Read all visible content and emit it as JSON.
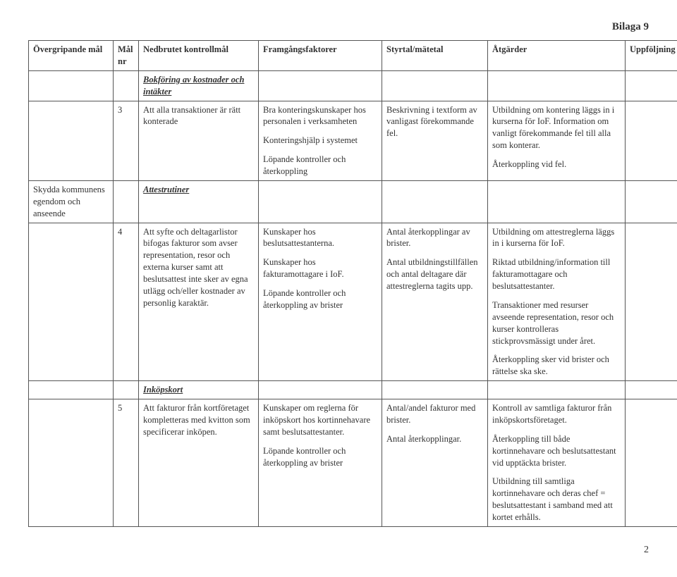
{
  "header_right": "Bilaga 9",
  "columns": {
    "c1": "Övergripande mål",
    "c2": "Mål nr",
    "c3": "Nedbrutet kontrollmål",
    "c4": "Framgångsfaktorer",
    "c5": "Styrtal/mätetal",
    "c6": "Åtgärder",
    "c7": "Uppföljning"
  },
  "section1_title": "Bokföring av kostnader och intäkter",
  "row3": {
    "nr": "3",
    "ned": "Att alla transaktioner är rätt konterade",
    "fram_p1": "Bra konteringskunskaper hos personalen i verksamheten",
    "fram_p2": "Konteringshjälp i systemet",
    "fram_p3": "Löpande kontroller och återkoppling",
    "styr": "Beskrivning i textform av vanligast förekommande fel.",
    "atg_p1": "Utbildning om kontering läggs in i kurserna för IoF. Information om vanligt förekommande fel till alla som konterar.",
    "atg_p2": "Återkoppling vid fel."
  },
  "section2_title": "Attestrutiner",
  "skydda": "Skydda kommunens egendom och anseende",
  "row4": {
    "nr": "4",
    "ned": "Att syfte och deltagarlistor bifogas fakturor som avser representation, resor och externa kurser samt att beslutsattest inte sker av egna utlägg och/eller kostnader av personlig karaktär.",
    "fram_p1": "Kunskaper hos beslutsattestanterna.",
    "fram_p2": "Kunskaper hos fakturamottagare i IoF.",
    "fram_p3": "Löpande kontroller och återkoppling av brister",
    "styr_p1": "Antal återkopplingar av brister.",
    "styr_p2": "Antal utbildningstillfällen och antal deltagare där attestreglerna tagits upp.",
    "atg_p1": "Utbildning om attestreglerna läggs in i kurserna för IoF.",
    "atg_p2": "Riktad utbildning/information till fakturamottagare och beslutsattestanter.",
    "atg_p3": "Transaktioner med resurser avseende representation, resor och kurser kontrolleras stickprovsmässigt under året.",
    "atg_p4": "Återkoppling sker vid brister och rättelse ska ske."
  },
  "section3_title": "Inköpskort",
  "row5": {
    "nr": "5",
    "ned": "Att fakturor från kortföretaget kompletteras med kvitton som specificerar inköpen.",
    "fram_p1": "Kunskaper om reglerna för inköpskort hos kortinnehavare samt beslutsattestanter.",
    "fram_p2": "Löpande kontroller och återkoppling av brister",
    "styr_p1": "Antal/andel fakturor med brister.",
    "styr_p2": "Antal återkopplingar.",
    "atg_p1": "Kontroll av samtliga fakturor från inköpskortsföretaget.",
    "atg_p2": "Återkoppling till både kortinnehavare och beslutsattestant vid upptäckta brister.",
    "atg_p3": "Utbildning till samtliga kortinnehavare och deras chef = beslutsattestant i samband med att kortet erhålls."
  },
  "page_number": "2"
}
